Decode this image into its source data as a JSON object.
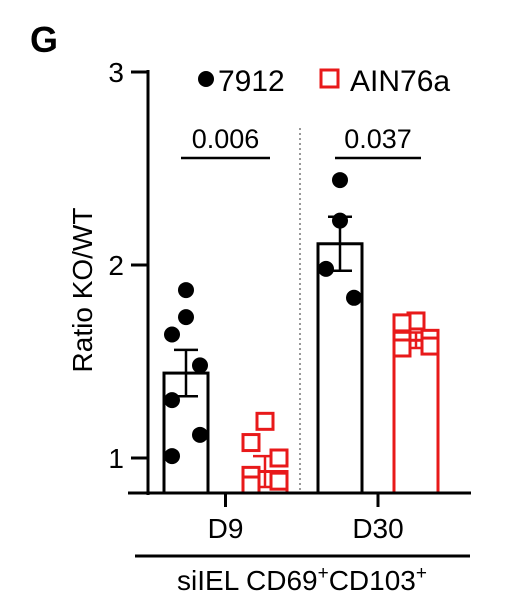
{
  "panel_label": "G",
  "chart_data": {
    "type": "bar",
    "ylabel": "Ratio KO/WT",
    "ylim": [
      0.8,
      3
    ],
    "yticks": [
      "1",
      "2",
      "3"
    ],
    "categories": [
      "D9",
      "D30"
    ],
    "group_label_main": "siIEL CD69",
    "group_label_sup1": "+",
    "group_label_mid": "CD103",
    "group_label_sup2": "+",
    "series": [
      {
        "name": "7912",
        "color": "#000000",
        "marker": "filled-circle",
        "means": [
          1.44,
          2.11
        ],
        "sem": [
          0.12,
          0.14
        ],
        "points": [
          [
            1.87,
            1.73,
            1.64,
            1.48,
            1.3,
            1.12,
            1.01
          ],
          [
            2.44,
            2.23,
            1.98,
            1.83
          ]
        ]
      },
      {
        "name": "AIN76a",
        "color": "#e8191a",
        "marker": "open-square",
        "means": [
          0.93,
          1.61
        ],
        "sem": [
          0.08,
          0.04
        ],
        "points": [
          [
            1.19,
            1.08,
            1.0,
            0.91,
            0.88,
            0.86
          ],
          [
            1.71,
            1.7,
            1.62,
            1.61,
            1.58,
            1.57
          ]
        ]
      }
    ],
    "pvalues": [
      "0.006",
      "0.037"
    ],
    "legend_position": "top"
  }
}
